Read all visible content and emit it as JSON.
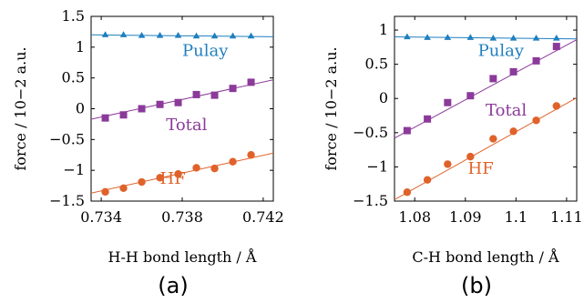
{
  "chart_data": [
    {
      "type": "scatter",
      "panel_label": "(a)",
      "xlabel": "H-H bond length / Å",
      "ylabel": "force / 10−2 a.u.",
      "xlim": [
        0.7335,
        0.7425
      ],
      "ylim": [
        -1.5,
        1.5
      ],
      "xticks": [
        0.734,
        0.738,
        0.742
      ],
      "xtick_labels": [
        "0.734",
        "0.738",
        "0.742"
      ],
      "yticks": [
        -1.5,
        -1,
        -0.5,
        0,
        0.5,
        1,
        1.5
      ],
      "ytick_labels": [
        "−1.5",
        "−1",
        "−0.5",
        "0",
        "0.5",
        "1",
        "1.5"
      ],
      "grid": false,
      "series": [
        {
          "name": "Pulay",
          "color": "#1f7fbf",
          "marker": "triangle",
          "x": [
            0.7342,
            0.7351,
            0.736,
            0.7369,
            0.7378,
            0.7387,
            0.7396,
            0.7405,
            0.7414
          ],
          "y": [
            1.2,
            1.2,
            1.19,
            1.19,
            1.19,
            1.18,
            1.18,
            1.18,
            1.18
          ],
          "fit": {
            "x": [
              0.7335,
              0.7425
            ],
            "y": [
              1.2,
              1.17
            ]
          }
        },
        {
          "name": "Total",
          "color": "#8b3a9a",
          "marker": "square",
          "x": [
            0.7342,
            0.7351,
            0.736,
            0.7369,
            0.7378,
            0.7387,
            0.7396,
            0.7405,
            0.7414
          ],
          "y": [
            -0.15,
            -0.1,
            0.0,
            0.07,
            0.1,
            0.23,
            0.22,
            0.33,
            0.43
          ],
          "fit": {
            "x": [
              0.7335,
              0.7425
            ],
            "y": [
              -0.17,
              0.47
            ]
          }
        },
        {
          "name": "HF",
          "color": "#e0622a",
          "marker": "circle",
          "x": [
            0.7342,
            0.7351,
            0.736,
            0.7369,
            0.7378,
            0.7387,
            0.7396,
            0.7405,
            0.7414
          ],
          "y": [
            -1.35,
            -1.29,
            -1.19,
            -1.12,
            -1.06,
            -0.96,
            -0.97,
            -0.86,
            -0.75
          ],
          "fit": {
            "x": [
              0.7335,
              0.7425
            ],
            "y": [
              -1.37,
              -0.72
            ]
          }
        }
      ]
    },
    {
      "type": "scatter",
      "panel_label": "(b)",
      "xlabel": "C-H bond length / Å",
      "ylabel": "force / 10−2 a.u.",
      "xlim": [
        1.076,
        1.112
      ],
      "ylim": [
        -1.5,
        1.2
      ],
      "xticks": [
        1.08,
        1.09,
        1.1,
        1.11
      ],
      "xtick_labels": [
        "1.08",
        "1.09",
        "1.1",
        "1.11"
      ],
      "yticks": [
        -1.5,
        -1,
        -0.5,
        0,
        0.5,
        1
      ],
      "ytick_labels": [
        "−1.5",
        "−1",
        "−0.5",
        "0",
        "0.5",
        "1"
      ],
      "grid": false,
      "series": [
        {
          "name": "Pulay",
          "color": "#1f7fbf",
          "marker": "triangle",
          "x": [
            1.0785,
            1.0825,
            1.0865,
            1.091,
            1.0955,
            1.0995,
            1.104,
            1.108
          ],
          "y": [
            0.9,
            0.89,
            0.89,
            0.89,
            0.88,
            0.88,
            0.88,
            0.88
          ],
          "fit": {
            "x": [
              1.076,
              1.112
            ],
            "y": [
              0.9,
              0.87
            ]
          }
        },
        {
          "name": "Total",
          "color": "#8b3a9a",
          "marker": "square",
          "x": [
            1.0785,
            1.0825,
            1.0865,
            1.091,
            1.0955,
            1.0995,
            1.104,
            1.108
          ],
          "y": [
            -0.47,
            -0.3,
            -0.06,
            0.04,
            0.29,
            0.39,
            0.55,
            0.76
          ],
          "fit": {
            "x": [
              1.076,
              1.112
            ],
            "y": [
              -0.58,
              0.86
            ]
          }
        },
        {
          "name": "HF",
          "color": "#e0622a",
          "marker": "circle",
          "x": [
            1.0785,
            1.0825,
            1.0865,
            1.091,
            1.0955,
            1.0995,
            1.104,
            1.108
          ],
          "y": [
            -1.37,
            -1.19,
            -0.96,
            -0.85,
            -0.59,
            -0.48,
            -0.32,
            -0.11
          ],
          "fit": {
            "x": [
              1.076,
              1.112
            ],
            "y": [
              -1.48,
              0.01
            ]
          }
        }
      ]
    }
  ]
}
